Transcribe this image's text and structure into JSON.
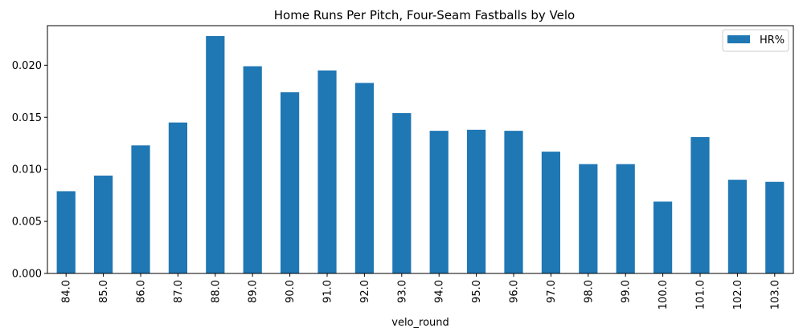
{
  "chart_data": {
    "type": "bar",
    "title": "Home Runs Per Pitch, Four-Seam Fastballs by Velo",
    "xlabel": "velo_round",
    "ylabel": "",
    "ylim": [
      0,
      0.0238
    ],
    "yticks": [
      "0.000",
      "0.005",
      "0.010",
      "0.015",
      "0.020"
    ],
    "ytick_values": [
      0,
      0.005,
      0.01,
      0.015,
      0.02
    ],
    "categories": [
      "84.0",
      "85.0",
      "86.0",
      "87.0",
      "88.0",
      "89.0",
      "90.0",
      "91.0",
      "92.0",
      "93.0",
      "94.0",
      "95.0",
      "96.0",
      "97.0",
      "98.0",
      "99.0",
      "100.0",
      "101.0",
      "102.0",
      "103.0"
    ],
    "series": [
      {
        "name": "HR%",
        "color": "#1f77b4",
        "values": [
          0.0079,
          0.0094,
          0.0123,
          0.0145,
          0.0228,
          0.0199,
          0.0174,
          0.0195,
          0.0183,
          0.0154,
          0.0137,
          0.0138,
          0.0137,
          0.0117,
          0.0105,
          0.0105,
          0.0069,
          0.0131,
          0.009,
          0.0088
        ]
      }
    ],
    "legend": "top-right",
    "grid": false
  }
}
